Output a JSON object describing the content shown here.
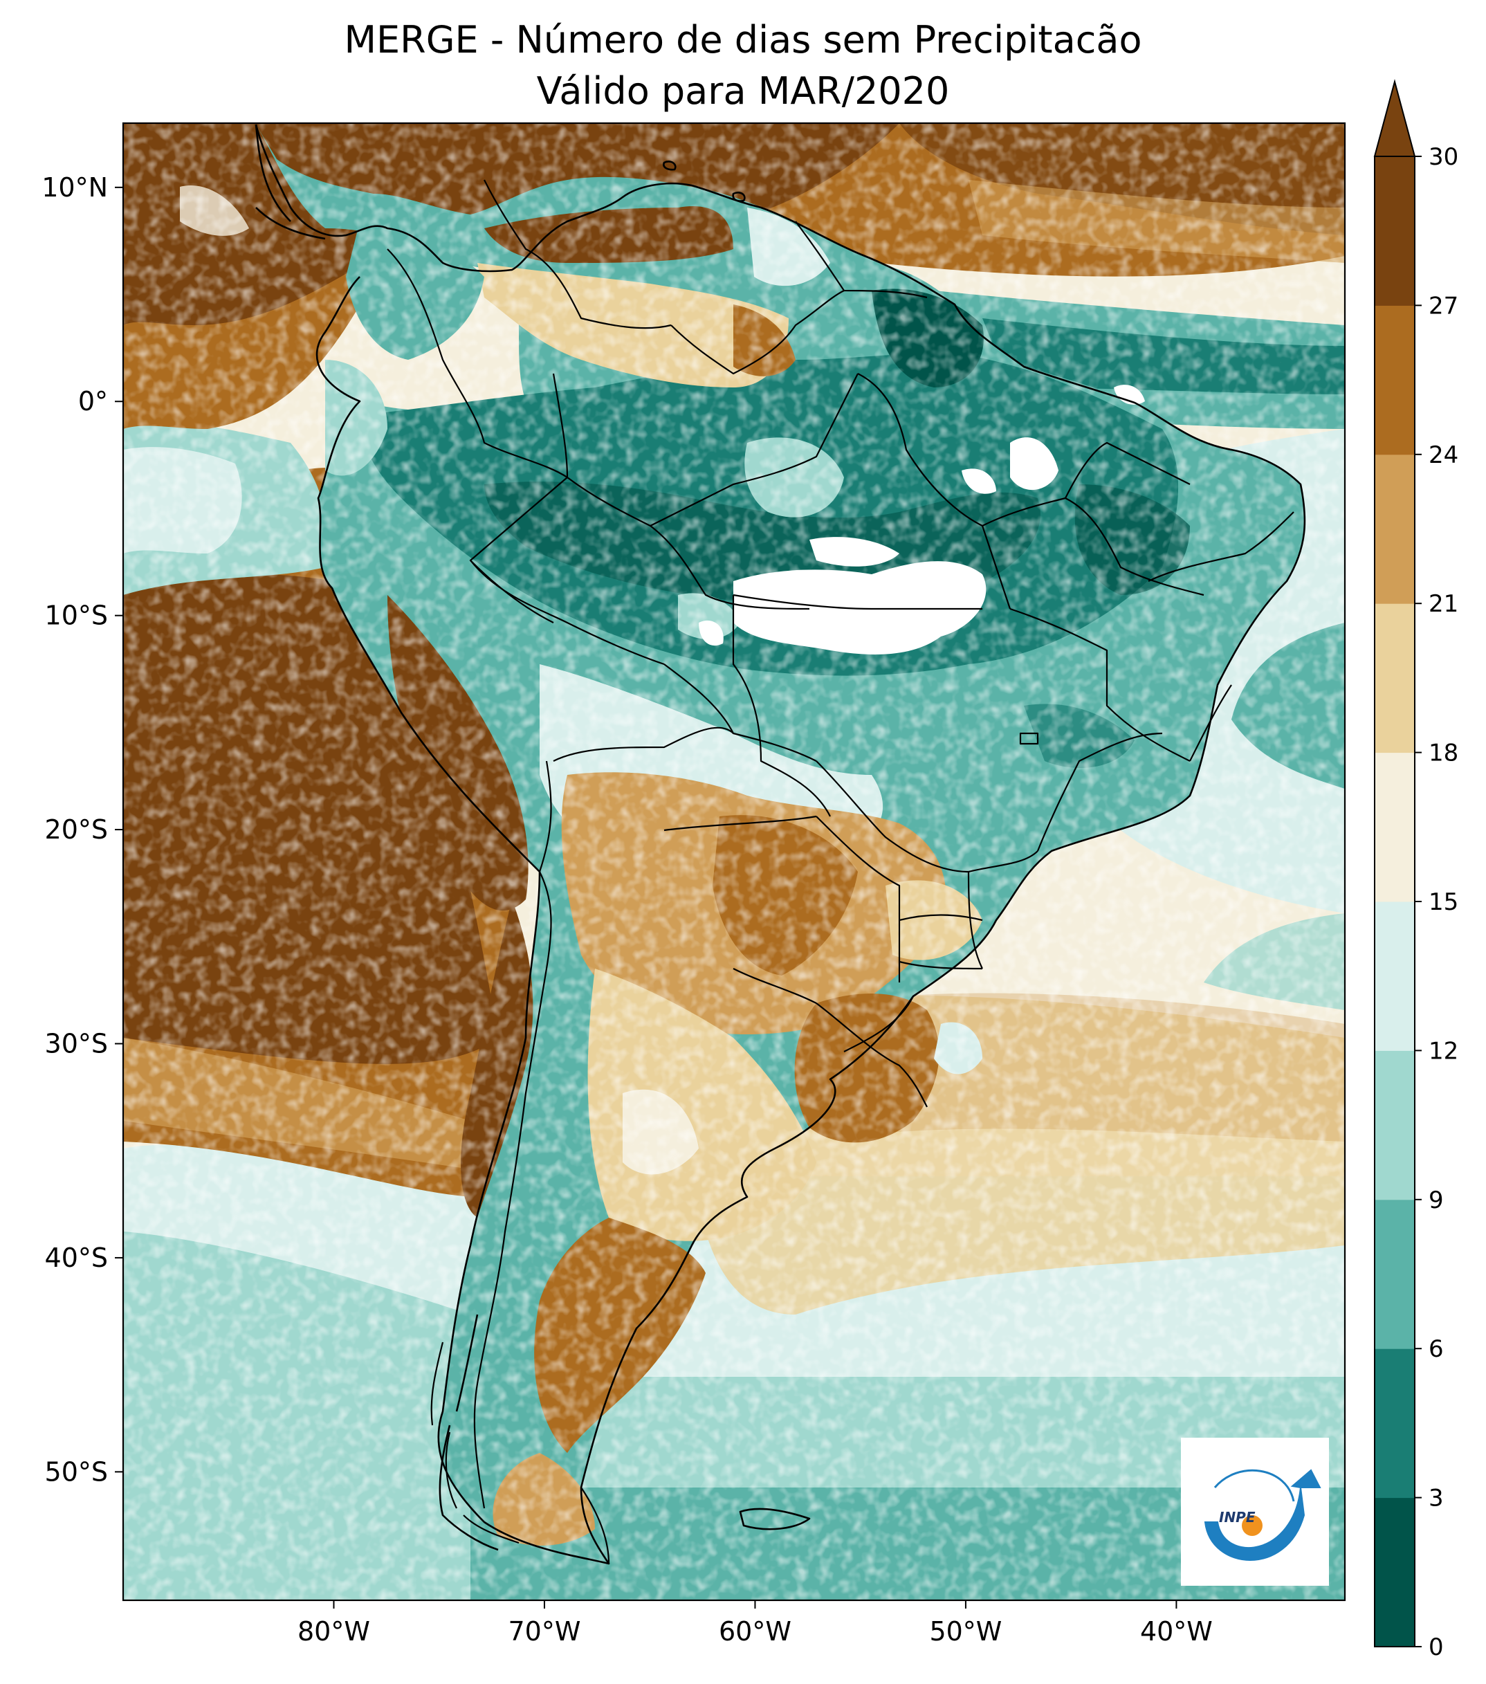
{
  "title": {
    "line1": "MERGE - Número de dias sem Precipitacão",
    "line2": "Válido para MAR/2020"
  },
  "map": {
    "lon_range": [
      -90,
      -32
    ],
    "lat_range": [
      -56,
      13
    ],
    "lon_ticks": [
      {
        "value": -80,
        "label": "80°W"
      },
      {
        "value": -70,
        "label": "70°W"
      },
      {
        "value": -60,
        "label": "60°W"
      },
      {
        "value": -50,
        "label": "50°W"
      },
      {
        "value": -40,
        "label": "40°W"
      }
    ],
    "lat_ticks": [
      {
        "value": 10,
        "label": "10°N"
      },
      {
        "value": 0,
        "label": "0°"
      },
      {
        "value": -10,
        "label": "10°S"
      },
      {
        "value": -20,
        "label": "20°S"
      },
      {
        "value": -30,
        "label": "30°S"
      },
      {
        "value": -40,
        "label": "40°S"
      },
      {
        "value": -50,
        "label": "50°S"
      }
    ]
  },
  "colorbar": {
    "levels": [
      0,
      3,
      6,
      9,
      12,
      15,
      18,
      21,
      24,
      27,
      30
    ],
    "labels": [
      "0",
      "3",
      "6",
      "9",
      "12",
      "15",
      "18",
      "21",
      "24",
      "27",
      "30"
    ],
    "colors": [
      "#01544a",
      "#1a7e74",
      "#5bb3a8",
      "#a0d8cf",
      "#d9efec",
      "#f5efdd",
      "#ead29c",
      "#d09e57",
      "#ac6c20",
      "#794310"
    ],
    "extend_color": "#794310",
    "extend": "max"
  },
  "logo": {
    "text": "INPE",
    "icon": "inpe-logo",
    "colors": {
      "arc": "#1e7fc1",
      "dot": "#f0921e"
    }
  }
}
